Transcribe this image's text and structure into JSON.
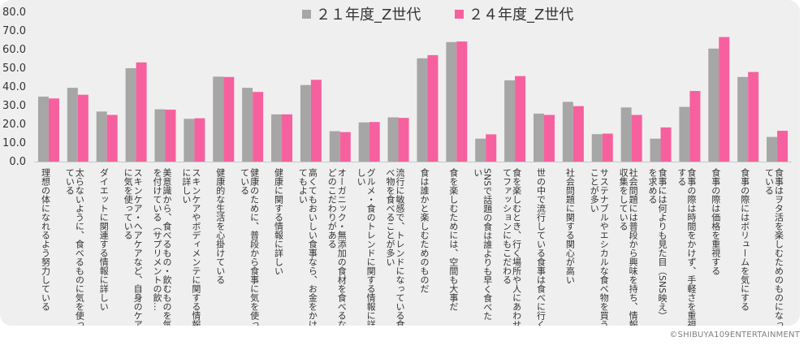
{
  "chart_data": {
    "type": "bar",
    "title": "",
    "xlabel": "",
    "ylabel": "",
    "ylim": [
      0,
      80
    ],
    "yticks": [
      "0.0",
      "10.0",
      "20.0",
      "30.0",
      "40.0",
      "50.0",
      "60.0",
      "70.0",
      "80.0"
    ],
    "grid": false,
    "legend_position": "top-center",
    "colors": [
      "#a6a6a6",
      "#f7609e"
    ],
    "categories": [
      "理想の体になれるよう努力している",
      "太らないように、食べるものに気を使っている",
      "ダイエットに関連する情報に詳しい",
      "スキンケア・ヘアケアなど、自身のケアに気を使っている",
      "美意識から、食べるもの・飲むものを気を付けている（サプリメントの飲…",
      "スキンケアやボディメンテに関する情報に詳しい",
      "健康的な生活を心掛けている",
      "健康のために、普段から食事に気を使っている",
      "健康に関する情報に詳しい",
      "高くてもおいしい食事なら、お金をかけてもよい",
      "オーガニック・無添加の食材を食べるなどのこだわりがある",
      "グルメ・食のトレンドに関する情報に詳しい",
      "流行に敏感で、トレンドになっている食べ物を食べることが多い",
      "食は誰かと楽しむためのものだ",
      "食を楽しむためには、空間も大事だ",
      "SNSで話題の食は誰よりも早く食べたい",
      "食を楽しむとき、行く場所や人にあわせてファッションにもこだわる",
      "世の中で流行している食事は食べに行く",
      "社会問題に関する関心が高い",
      "サステナブルやエシカルな食べ物を買うことが多い",
      "社会問題には普段から興味を持ち、情報収集をしている",
      "食事には何よりも見た目（SNS映え）を求める",
      "食事の際は時間をかけず、手軽さを重視する",
      "食事の際は価格を重視する",
      "食事の際にはボリュームを気にする",
      "食事はヲタ活を楽しむためのものになっている"
    ],
    "series": [
      {
        "name": "２１年度_Z世代",
        "values": [
          34.8,
          39.5,
          26.8,
          50.0,
          28.0,
          22.9,
          45.5,
          39.5,
          25.3,
          41.0,
          16.3,
          21.0,
          23.7,
          55.3,
          64.0,
          12.3,
          43.5,
          25.7,
          32.0,
          14.7,
          29.0,
          12.3,
          29.3,
          60.5,
          45.3,
          13.2
        ]
      },
      {
        "name": "２４年度_Z世代",
        "values": [
          33.8,
          35.8,
          25.0,
          53.1,
          27.8,
          23.2,
          45.3,
          37.3,
          25.3,
          43.8,
          15.8,
          21.2,
          23.4,
          57.0,
          64.3,
          14.6,
          45.8,
          25.0,
          29.7,
          15.0,
          25.0,
          18.3,
          37.8,
          66.7,
          48.0,
          16.5
        ]
      }
    ]
  },
  "footer": {
    "copyright": "©SHIBUYA109ENTERTAINMENT"
  }
}
